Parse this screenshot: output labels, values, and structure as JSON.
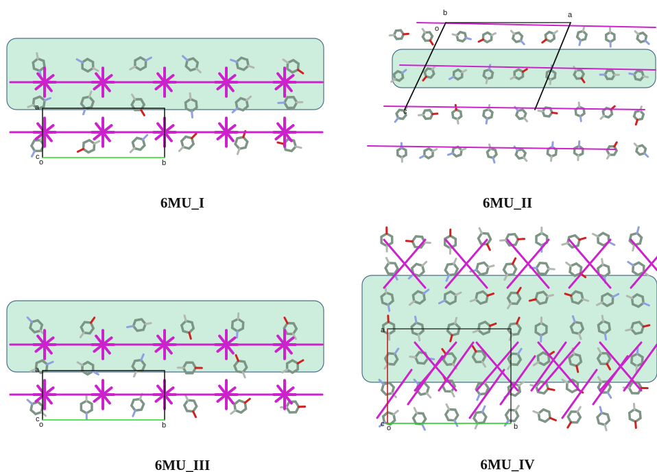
{
  "panels": [
    {
      "label": "6MU_I",
      "axes": [
        "a",
        "c",
        "o",
        "b"
      ]
    },
    {
      "label": "6MU_II",
      "axes": [
        "b",
        "o",
        "a",
        "c"
      ]
    },
    {
      "label": "6MU_III",
      "axes": [
        "a",
        "c",
        "o",
        "b"
      ]
    },
    {
      "label": "6MU_IV",
      "axes": [
        "a",
        "c",
        "o",
        "b"
      ]
    }
  ]
}
